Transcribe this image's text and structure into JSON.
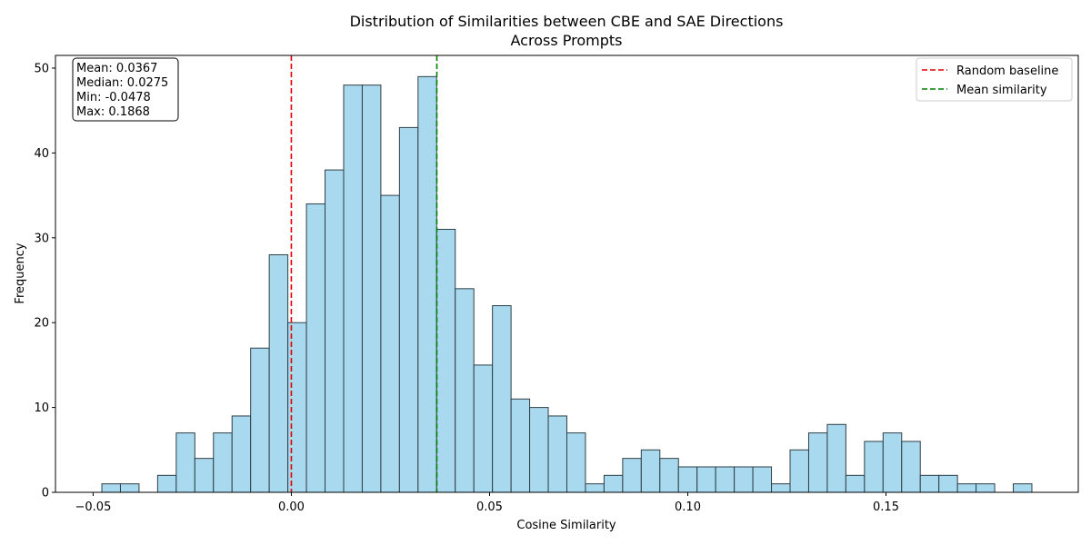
{
  "chart_data": {
    "type": "bar",
    "title": [
      "Distribution of Similarities between CBE and SAE Directions",
      "Across Prompts"
    ],
    "xlabel": "Cosine Similarity",
    "ylabel": "Frequency",
    "xlim": [
      -0.0595,
      0.1985
    ],
    "ylim": [
      0,
      51.5
    ],
    "xticks": [
      -0.05,
      0.0,
      0.05,
      0.1,
      0.15
    ],
    "xtick_labels": [
      "−0.05",
      "0.00",
      "0.05",
      "0.10",
      "0.15"
    ],
    "yticks": [
      0,
      10,
      20,
      30,
      40,
      50
    ],
    "ytick_labels": [
      "0",
      "10",
      "20",
      "30",
      "40",
      "50"
    ],
    "bin_start": -0.0478,
    "bin_end": 0.1868,
    "bar_color": "#a9d9ee",
    "bar_edge_color": "#2f3f46",
    "counts": [
      1,
      1,
      0,
      2,
      7,
      4,
      7,
      9,
      17,
      28,
      20,
      34,
      38,
      48,
      48,
      35,
      43,
      49,
      31,
      24,
      15,
      22,
      11,
      10,
      9,
      7,
      1,
      2,
      4,
      5,
      4,
      3,
      3,
      3,
      3,
      3,
      1,
      5,
      7,
      8,
      2,
      6,
      7,
      6,
      2,
      2,
      1,
      1,
      0,
      1
    ],
    "vlines": [
      {
        "x": 0.0,
        "color": "#e00000",
        "label": "Random baseline"
      },
      {
        "x": 0.0367,
        "color": "#008000",
        "label": "Mean similarity"
      }
    ],
    "legend_position": "top-right",
    "stats_box": [
      "Mean: 0.0367",
      "Median: 0.0275",
      "Min: -0.0478",
      "Max: 0.1868"
    ],
    "grid": false
  }
}
